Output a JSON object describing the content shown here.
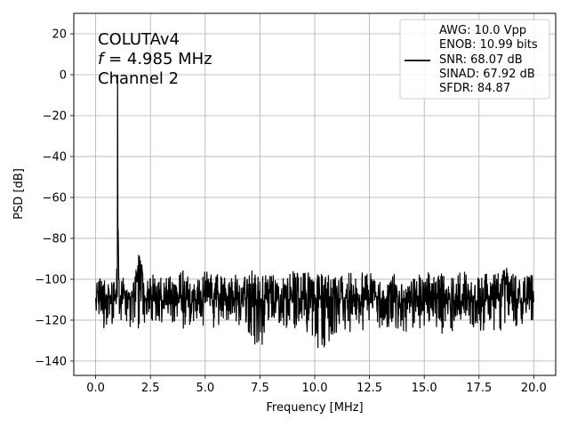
{
  "chart_data": {
    "type": "line",
    "title": "",
    "xlabel": "Frequency [MHz]",
    "ylabel": "PSD [dB]",
    "xlim": [
      -1.0,
      21.0
    ],
    "ylim": [
      -147,
      30
    ],
    "xticks": [
      0.0,
      2.5,
      5.0,
      7.5,
      10.0,
      12.5,
      15.0,
      17.5,
      20.0
    ],
    "xtick_labels": [
      "0.0",
      "2.5",
      "5.0",
      "7.5",
      "10.0",
      "12.5",
      "15.0",
      "17.5",
      "20.0"
    ],
    "yticks": [
      20,
      0,
      -20,
      -40,
      -60,
      -80,
      -100,
      -120,
      -140
    ],
    "ytick_labels": [
      "20",
      "0",
      "−20",
      "−40",
      "−60",
      "−80",
      "−100",
      "−120",
      "−140"
    ],
    "grid": true,
    "line_color": "#000000",
    "annotation": {
      "line1": "COLUTAv4",
      "line2_var": "f",
      "line2_rest": " = 4.985 MHz",
      "line3": "Channel 2"
    },
    "legend": {
      "placement": "top-right",
      "lines": [
        "AWG: 10.0 Vpp",
        "ENOB: 10.99 bits",
        "SNR: 68.07 dB",
        "SINAD: 67.92 dB",
        "SFDR: 84.87"
      ]
    },
    "series": [
      {
        "x": [
          0.0,
          0.25,
          0.5,
          0.75,
          0.95,
          1.0,
          1.05,
          1.25,
          1.5,
          1.75,
          2.0,
          2.25,
          2.5,
          3.0,
          3.5,
          4.0,
          4.5,
          5.0,
          5.5,
          6.0,
          6.5,
          7.0,
          7.5,
          8.0,
          8.5,
          9.0,
          9.5,
          10.0,
          10.5,
          11.0,
          11.5,
          12.0,
          12.5,
          13.0,
          13.5,
          14.0,
          14.5,
          15.0,
          15.5,
          16.0,
          16.5,
          17.0,
          17.5,
          18.0,
          18.5,
          18.75,
          19.0,
          19.5,
          20.0
        ],
        "y": [
          -108,
          -110,
          -111,
          -109,
          -110,
          0,
          -110,
          -107,
          -109,
          -108,
          -88,
          -109,
          -110,
          -109,
          -110,
          -109,
          -110,
          -109,
          -110,
          -108,
          -110,
          -109,
          -110,
          -109,
          -110,
          -109,
          -110,
          -109,
          -110,
          -109,
          -110,
          -109,
          -110,
          -109,
          -110,
          -109,
          -110,
          -109,
          -110,
          -109,
          -110,
          -109,
          -110,
          -109,
          -110,
          -94,
          -110,
          -109,
          -110
        ],
        "upper": [
          -98,
          -100,
          -101,
          -100,
          -100,
          0,
          -100,
          -98,
          -100,
          -99,
          -86,
          -98,
          -98,
          -97,
          -99,
          -96,
          -100,
          -96,
          -98,
          -97,
          -98,
          -95,
          -98,
          -98,
          -98,
          -96,
          -97,
          -96,
          -98,
          -98,
          -97,
          -96,
          -97,
          -98,
          -97,
          -96,
          -98,
          -97,
          -96,
          -98,
          -97,
          -96,
          -98,
          -97,
          -96,
          -94,
          -97,
          -96,
          -97
        ],
        "lower": [
          -118,
          -121,
          -127,
          -122,
          -120,
          -120,
          -121,
          -120,
          -126,
          -124,
          -124,
          -122,
          -123,
          -122,
          -121,
          -125,
          -121,
          -123,
          -125,
          -121,
          -122,
          -126,
          -137,
          -122,
          -124,
          -126,
          -124,
          -131,
          -140,
          -126,
          -125,
          -129,
          -121,
          -124,
          -123,
          -125,
          -128,
          -124,
          -126,
          -127,
          -124,
          -122,
          -125,
          -126,
          -125,
          -121,
          -124,
          -122,
          -121
        ]
      }
    ]
  }
}
